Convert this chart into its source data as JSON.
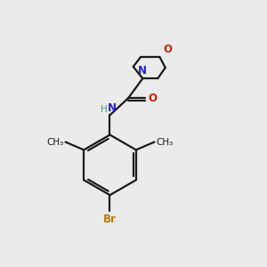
{
  "background_color": "#ebebeb",
  "bond_color": "#1a1a1a",
  "N_color": "#2222cc",
  "O_color": "#cc2200",
  "Br_color": "#bb7700",
  "H_color": "#4a9090",
  "figsize": [
    3.0,
    3.0
  ],
  "dpi": 100,
  "xlim": [
    0,
    10
  ],
  "ylim": [
    0,
    10
  ]
}
